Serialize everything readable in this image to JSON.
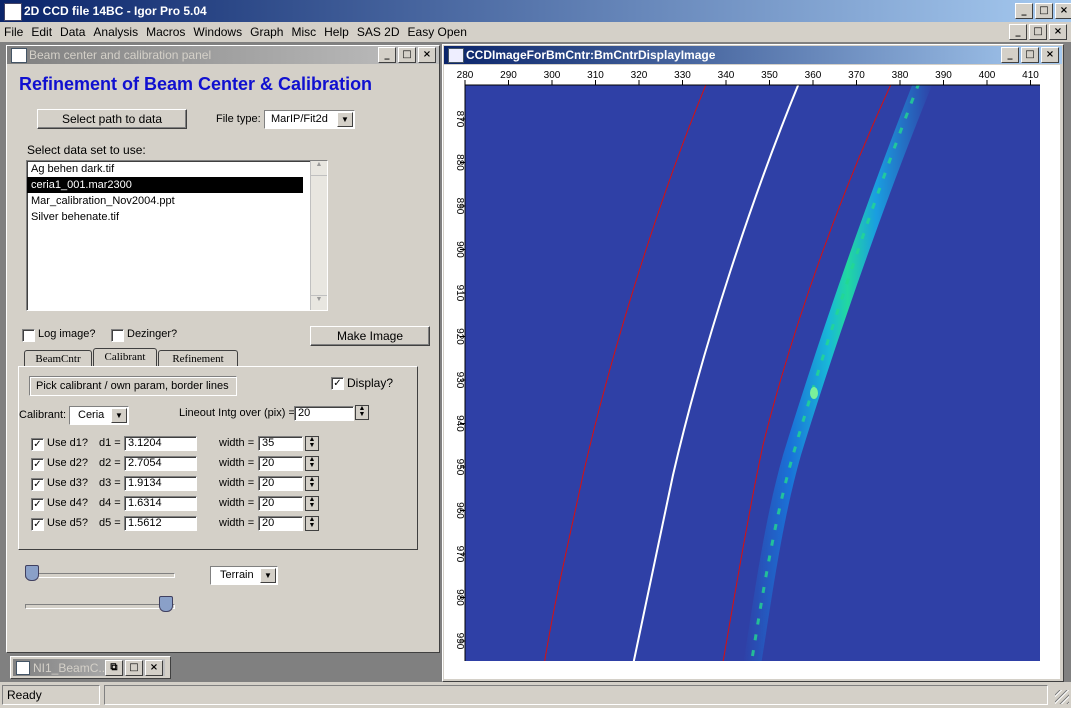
{
  "app": {
    "title": "2D CCD file 14BC - Igor Pro 5.04"
  },
  "menu": [
    "File",
    "Edit",
    "Data",
    "Analysis",
    "Macros",
    "Windows",
    "Graph",
    "Misc",
    "Help",
    "SAS 2D",
    "Easy Open"
  ],
  "panel": {
    "title": "Beam center and calibration panel",
    "heading": "Refinement of Beam Center & Calibration",
    "select_path_label": "Select path to data",
    "file_type_label": "File type:",
    "file_type_value": "MarIP/Fit2d",
    "data_set_label": "Select data set to use:",
    "files": [
      "Ag behen dark.tif",
      "ceria1_001.mar2300",
      "Mar_calibration_Nov2004.ppt",
      "Silver behenate.tif"
    ],
    "log_image_label": "Log image?",
    "dezinger_label": "Dezinger?",
    "make_image_label": "Make Image",
    "tabs": [
      "BeamCntr",
      "Calibrant",
      "Refinement"
    ],
    "pick_label": "Pick calibrant / own param, border lines",
    "display_label": "Display?",
    "calibrant_label": "Calibrant:",
    "calibrant_value": "Ceria",
    "lineout_label": "Lineout Intg over (pix) =",
    "lineout_value": "20",
    "rows": [
      {
        "use": "Use d1?",
        "d": "d1 =",
        "dval": "3.1204",
        "w": "width =",
        "wval": "35"
      },
      {
        "use": "Use d2?",
        "d": "d2 =",
        "dval": "2.7054",
        "w": "width =",
        "wval": "20"
      },
      {
        "use": "Use d3?",
        "d": "d3 =",
        "dval": "1.9134",
        "w": "width =",
        "wval": "20"
      },
      {
        "use": "Use d4?",
        "d": "d4 =",
        "dval": "1.6314",
        "w": "width =",
        "wval": "20"
      },
      {
        "use": "Use d5?",
        "d": "d5 =",
        "dval": "1.5612",
        "w": "width =",
        "wval": "20"
      }
    ],
    "colortable_value": "Terrain",
    "slider_low": 0,
    "slider_high": 1
  },
  "minimized": {
    "title": "NI1_BeamC..."
  },
  "image_window": {
    "title": "CCDImageForBmCntr:BmCntrDisplayImage",
    "x_ticks": [
      "280",
      "290",
      "300",
      "310",
      "320",
      "330",
      "340",
      "350",
      "360",
      "370",
      "380",
      "390",
      "400",
      "410"
    ],
    "y_ticks": [
      "870",
      "880",
      "890",
      "900",
      "910",
      "920",
      "930",
      "940",
      "950",
      "960",
      "970",
      "980",
      "990"
    ],
    "background_color": "#2f40a6"
  },
  "status": {
    "text": "Ready"
  }
}
